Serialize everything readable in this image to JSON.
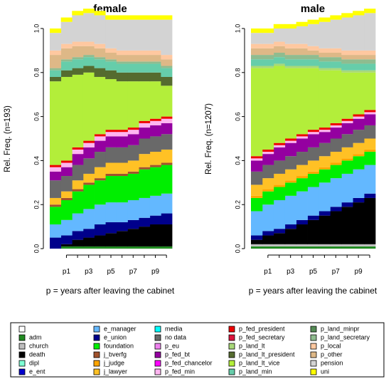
{
  "chart_data": [
    {
      "type": "area",
      "title": "female",
      "xlabel": "p = years after leaving the cabinet",
      "ylabel": "Rel. Freq. (n=193)",
      "ylim": [
        0,
        1
      ],
      "x_ticks": [
        "p1",
        "p3",
        "p5",
        "p7",
        "p9"
      ],
      "y_ticks": [
        "0.0",
        "0.2",
        "0.4",
        "0.6",
        "0.8",
        "1.0"
      ],
      "periods": [
        "p0",
        "p1",
        "p2",
        "p3",
        "p4",
        "p5",
        "p6",
        "p7",
        "p8",
        "p9",
        "p10"
      ],
      "series": [
        {
          "name": "adm",
          "values": [
            0.0,
            0.01,
            0.01,
            0.01,
            0.01,
            0.01,
            0.01,
            0.01,
            0.01,
            0.01,
            0.01
          ]
        },
        {
          "name": "death",
          "values": [
            0.0,
            0.01,
            0.03,
            0.04,
            0.05,
            0.06,
            0.07,
            0.08,
            0.09,
            0.1,
            0.1
          ]
        },
        {
          "name": "e_union",
          "values": [
            0.05,
            0.04,
            0.04,
            0.04,
            0.05,
            0.05,
            0.04,
            0.04,
            0.04,
            0.04,
            0.05
          ]
        },
        {
          "name": "e_manager",
          "values": [
            0.06,
            0.07,
            0.08,
            0.09,
            0.09,
            0.09,
            0.09,
            0.09,
            0.09,
            0.09,
            0.09
          ]
        },
        {
          "name": "foundation",
          "values": [
            0.08,
            0.09,
            0.1,
            0.11,
            0.11,
            0.12,
            0.12,
            0.12,
            0.13,
            0.13,
            0.13
          ]
        },
        {
          "name": "j_bverfg",
          "values": [
            0.01,
            0.01,
            0.01,
            0.01,
            0.01,
            0.01,
            0.01,
            0.01,
            0.01,
            0.01,
            0.01
          ]
        },
        {
          "name": "j_lawyer",
          "values": [
            0.03,
            0.03,
            0.04,
            0.04,
            0.05,
            0.05,
            0.05,
            0.05,
            0.06,
            0.06,
            0.06
          ]
        },
        {
          "name": "no data",
          "values": [
            0.08,
            0.07,
            0.07,
            0.07,
            0.07,
            0.07,
            0.07,
            0.07,
            0.07,
            0.07,
            0.07
          ]
        },
        {
          "name": "p_fed_bt",
          "values": [
            0.04,
            0.04,
            0.05,
            0.05,
            0.05,
            0.05,
            0.05,
            0.05,
            0.05,
            0.05,
            0.05
          ]
        },
        {
          "name": "p_fed_min",
          "values": [
            0.02,
            0.02,
            0.02,
            0.02,
            0.02,
            0.02,
            0.02,
            0.02,
            0.02,
            0.02,
            0.02
          ]
        },
        {
          "name": "p_fed_president",
          "values": [
            0.01,
            0.01,
            0.01,
            0.01,
            0.01,
            0.01,
            0.01,
            0.01,
            0.01,
            0.01,
            0.01
          ]
        },
        {
          "name": "p_land_lt_vice",
          "values": [
            0.38,
            0.38,
            0.33,
            0.31,
            0.26,
            0.23,
            0.22,
            0.21,
            0.18,
            0.17,
            0.14
          ]
        },
        {
          "name": "p_land_lt_president",
          "values": [
            0.02,
            0.03,
            0.03,
            0.03,
            0.04,
            0.04,
            0.04,
            0.04,
            0.04,
            0.04,
            0.04
          ]
        },
        {
          "name": "p_land_min",
          "values": [
            0.03,
            0.04,
            0.04,
            0.04,
            0.04,
            0.04,
            0.04,
            0.04,
            0.04,
            0.04,
            0.04
          ]
        },
        {
          "name": "p_land_secretary",
          "values": [
            0.01,
            0.01,
            0.01,
            0.01,
            0.01,
            0.01,
            0.01,
            0.01,
            0.01,
            0.01,
            0.01
          ]
        },
        {
          "name": "p_other",
          "values": [
            0.06,
            0.05,
            0.05,
            0.04,
            0.04,
            0.03,
            0.03,
            0.03,
            0.03,
            0.03,
            0.03
          ]
        },
        {
          "name": "p_local",
          "values": [
            0.02,
            0.02,
            0.02,
            0.02,
            0.02,
            0.02,
            0.02,
            0.02,
            0.02,
            0.02,
            0.02
          ]
        },
        {
          "name": "pension",
          "values": [
            0.08,
            0.1,
            0.12,
            0.13,
            0.13,
            0.13,
            0.14,
            0.14,
            0.14,
            0.14,
            0.16
          ]
        },
        {
          "name": "uni",
          "values": [
            0.02,
            0.02,
            0.02,
            0.02,
            0.02,
            0.02,
            0.02,
            0.02,
            0.02,
            0.02,
            0.02
          ]
        }
      ]
    },
    {
      "type": "area",
      "title": "male",
      "xlabel": "p = years after leaving the cabinet",
      "ylabel": "Rel. Freq. (n=1207)",
      "ylim": [
        0,
        1
      ],
      "x_ticks": [
        "p1",
        "p3",
        "p5",
        "p7",
        "p9"
      ],
      "y_ticks": [
        "0.0",
        "0.2",
        "0.4",
        "0.6",
        "0.8",
        "1.0"
      ],
      "periods": [
        "p0",
        "p1",
        "p2",
        "p3",
        "p4",
        "p5",
        "p6",
        "p7",
        "p8",
        "p9",
        "p10"
      ],
      "series": [
        {
          "name": "adm",
          "values": [
            0.01,
            0.01,
            0.01,
            0.01,
            0.01,
            0.01,
            0.01,
            0.01,
            0.01,
            0.01,
            0.01
          ]
        },
        {
          "name": "church",
          "values": [
            0.01,
            0.01,
            0.01,
            0.01,
            0.01,
            0.01,
            0.01,
            0.01,
            0.01,
            0.01,
            0.01
          ]
        },
        {
          "name": "death",
          "values": [
            0.02,
            0.04,
            0.05,
            0.07,
            0.09,
            0.11,
            0.13,
            0.15,
            0.17,
            0.19,
            0.21
          ]
        },
        {
          "name": "e_union",
          "values": [
            0.02,
            0.02,
            0.02,
            0.02,
            0.02,
            0.02,
            0.02,
            0.02,
            0.02,
            0.02,
            0.02
          ]
        },
        {
          "name": "e_manager",
          "values": [
            0.11,
            0.12,
            0.13,
            0.13,
            0.13,
            0.13,
            0.13,
            0.13,
            0.13,
            0.13,
            0.13
          ]
        },
        {
          "name": "foundation",
          "values": [
            0.06,
            0.06,
            0.06,
            0.06,
            0.06,
            0.06,
            0.06,
            0.06,
            0.06,
            0.06,
            0.06
          ]
        },
        {
          "name": "j_judge",
          "values": [
            0.01,
            0.01,
            0.01,
            0.01,
            0.01,
            0.01,
            0.01,
            0.01,
            0.01,
            0.01,
            0.01
          ]
        },
        {
          "name": "j_lawyer",
          "values": [
            0.05,
            0.05,
            0.05,
            0.05,
            0.05,
            0.05,
            0.05,
            0.05,
            0.05,
            0.05,
            0.05
          ]
        },
        {
          "name": "no data",
          "values": [
            0.06,
            0.06,
            0.06,
            0.06,
            0.06,
            0.06,
            0.06,
            0.06,
            0.06,
            0.06,
            0.06
          ]
        },
        {
          "name": "p_fed_bt",
          "values": [
            0.05,
            0.05,
            0.06,
            0.06,
            0.06,
            0.06,
            0.05,
            0.05,
            0.05,
            0.05,
            0.05
          ]
        },
        {
          "name": "p_fed_min",
          "values": [
            0.01,
            0.01,
            0.01,
            0.01,
            0.01,
            0.01,
            0.01,
            0.01,
            0.01,
            0.01,
            0.01
          ]
        },
        {
          "name": "p_fed_president",
          "values": [
            0.01,
            0.01,
            0.01,
            0.01,
            0.01,
            0.01,
            0.01,
            0.01,
            0.01,
            0.01,
            0.01
          ]
        },
        {
          "name": "p_land_lt_vice",
          "values": [
            0.4,
            0.37,
            0.35,
            0.32,
            0.3,
            0.28,
            0.26,
            0.24,
            0.21,
            0.19,
            0.17
          ]
        },
        {
          "name": "p_land_lt",
          "values": [
            0.01,
            0.01,
            0.01,
            0.01,
            0.01,
            0.01,
            0.01,
            0.01,
            0.01,
            0.01,
            0.01
          ]
        },
        {
          "name": "p_land_min",
          "values": [
            0.03,
            0.03,
            0.03,
            0.03,
            0.03,
            0.03,
            0.03,
            0.03,
            0.03,
            0.03,
            0.03
          ]
        },
        {
          "name": "p_land_secretary",
          "values": [
            0.02,
            0.02,
            0.02,
            0.02,
            0.02,
            0.02,
            0.02,
            0.02,
            0.02,
            0.02,
            0.02
          ]
        },
        {
          "name": "p_other",
          "values": [
            0.03,
            0.03,
            0.03,
            0.03,
            0.03,
            0.02,
            0.02,
            0.02,
            0.02,
            0.02,
            0.02
          ]
        },
        {
          "name": "p_local",
          "values": [
            0.02,
            0.02,
            0.02,
            0.02,
            0.02,
            0.02,
            0.02,
            0.02,
            0.02,
            0.02,
            0.02
          ]
        },
        {
          "name": "pension",
          "values": [
            0.05,
            0.05,
            0.06,
            0.07,
            0.08,
            0.1,
            0.12,
            0.13,
            0.15,
            0.16,
            0.17
          ]
        },
        {
          "name": "uni",
          "values": [
            0.02,
            0.02,
            0.02,
            0.02,
            0.02,
            0.02,
            0.02,
            0.02,
            0.02,
            0.02,
            0.02
          ]
        }
      ]
    }
  ],
  "legend": {
    "placement": "bottom",
    "entries": [
      {
        "name": "",
        "color": "#ffffff"
      },
      {
        "name": "adm",
        "color": "#228b22"
      },
      {
        "name": "church",
        "color": "#bebebe"
      },
      {
        "name": "death",
        "color": "#000000"
      },
      {
        "name": "dipl",
        "color": "#7fffd4"
      },
      {
        "name": "e_ent",
        "color": "#0000cd"
      },
      {
        "name": "e_manager",
        "color": "#63b8ff"
      },
      {
        "name": "e_union",
        "color": "#00008b"
      },
      {
        "name": "foundation",
        "color": "#00ee00"
      },
      {
        "name": "j_bverfg",
        "color": "#a0522d"
      },
      {
        "name": "j_judge",
        "color": "#ffa500"
      },
      {
        "name": "j_lawyer",
        "color": "#ffc125"
      },
      {
        "name": "media",
        "color": "#00ffff"
      },
      {
        "name": "no data",
        "color": "#696969"
      },
      {
        "name": "p_eu",
        "color": "#ee82ee"
      },
      {
        "name": "p_fed_bt",
        "color": "#9400a0"
      },
      {
        "name": "p_fed_chancelor",
        "color": "#ff00ff"
      },
      {
        "name": "p_fed_min",
        "color": "#ffb5f0"
      },
      {
        "name": "p_fed_president",
        "color": "#ee0000"
      },
      {
        "name": "p_fed_secretary",
        "color": "#dc143c"
      },
      {
        "name": "p_land_lt",
        "color": "#a8d878"
      },
      {
        "name": "p_land_lt_president",
        "color": "#556b2f"
      },
      {
        "name": "p_land_lt_vice",
        "color": "#b3ee3a"
      },
      {
        "name": "p_land_min",
        "color": "#66cdaa"
      },
      {
        "name": "p_land_minpr",
        "color": "#548b54"
      },
      {
        "name": "p_land_secretary",
        "color": "#8fbc8f"
      },
      {
        "name": "p_local",
        "color": "#ffc8a0"
      },
      {
        "name": "p_other",
        "color": "#deb887"
      },
      {
        "name": "pension",
        "color": "#d3d3d3"
      },
      {
        "name": "uni",
        "color": "#ffff00"
      }
    ]
  }
}
